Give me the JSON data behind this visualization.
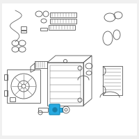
{
  "bg_color": "#f0f0f0",
  "line_color": "#555555",
  "highlight_color": "#29abe2",
  "highlight_dark": "#1a7fa8",
  "fig_width": 2.0,
  "fig_height": 2.0,
  "dpi": 100
}
